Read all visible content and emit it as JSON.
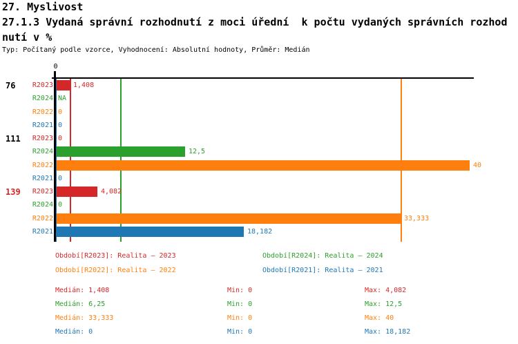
{
  "header": {
    "title": "27. Myslivost",
    "subtitle_line1": "27.1.3 Vydaná správní rozhodnutí z moci úřední  k počtu vydaných správních rozhod",
    "subtitle_line2": "nutí v %",
    "meta": "Typ: Počítaný podle vzorce, Vyhodnocení: Absolutní hodnoty, Průměr: Medián"
  },
  "colors": {
    "R2023": "#d62728",
    "R2024": "#2ca02c",
    "R2022": "#ff7f0e",
    "R2021": "#1f77b4",
    "axis": "#000000"
  },
  "chart_data": {
    "type": "bar",
    "orientation": "horizontal",
    "value_unit": "%",
    "x_axis": {
      "tick_labels": [
        "0"
      ],
      "range": [
        0,
        40.4
      ],
      "grid": false
    },
    "series_order": [
      "R2023",
      "R2024",
      "R2022",
      "R2021"
    ],
    "groups": [
      {
        "label": "76",
        "label_color": "#000000",
        "rows": [
          {
            "series": "R2023",
            "value": 1.408,
            "display": "1,408"
          },
          {
            "series": "R2024",
            "value": null,
            "display": "NA"
          },
          {
            "series": "R2022",
            "value": 0,
            "display": "0"
          },
          {
            "series": "R2021",
            "value": 0,
            "display": "0"
          }
        ]
      },
      {
        "label": "111",
        "label_color": "#000000",
        "rows": [
          {
            "series": "R2023",
            "value": 0,
            "display": "0"
          },
          {
            "series": "R2024",
            "value": 12.5,
            "display": "12,5"
          },
          {
            "series": "R2022",
            "value": 40,
            "display": "40"
          },
          {
            "series": "R2021",
            "value": 0,
            "display": "0"
          }
        ]
      },
      {
        "label": "139",
        "label_color": "#d62728",
        "rows": [
          {
            "series": "R2023",
            "value": 4.082,
            "display": "4,082"
          },
          {
            "series": "R2024",
            "value": 0,
            "display": "0"
          },
          {
            "series": "R2022",
            "value": 33.333,
            "display": "33,333"
          },
          {
            "series": "R2021",
            "value": 18.182,
            "display": "18,182"
          }
        ]
      }
    ],
    "medians": [
      {
        "series": "R2023",
        "value": 1.408
      },
      {
        "series": "R2024",
        "value": 6.25
      },
      {
        "series": "R2022",
        "value": 33.333
      },
      {
        "series": "R2021",
        "value": 0
      }
    ],
    "legend": [
      {
        "series": "R2023",
        "label": "Období[R2023]: Realita – 2023"
      },
      {
        "series": "R2024",
        "label": "Období[R2024]: Realita – 2024"
      },
      {
        "series": "R2022",
        "label": "Období[R2022]: Realita – 2022"
      },
      {
        "series": "R2021",
        "label": "Období[R2021]: Realita – 2021"
      }
    ],
    "stats": [
      {
        "series": "R2023",
        "median": "Medián: 1,408",
        "min": "Min: 0",
        "max": "Max: 4,082"
      },
      {
        "series": "R2024",
        "median": "Medián: 6,25",
        "min": "Min: 0",
        "max": "Max: 12,5"
      },
      {
        "series": "R2022",
        "median": "Medián: 33,333",
        "min": "Min: 0",
        "max": "Max: 40"
      },
      {
        "series": "R2021",
        "median": "Medián: 0",
        "min": "Min: 0",
        "max": "Max: 18,182"
      }
    ]
  }
}
